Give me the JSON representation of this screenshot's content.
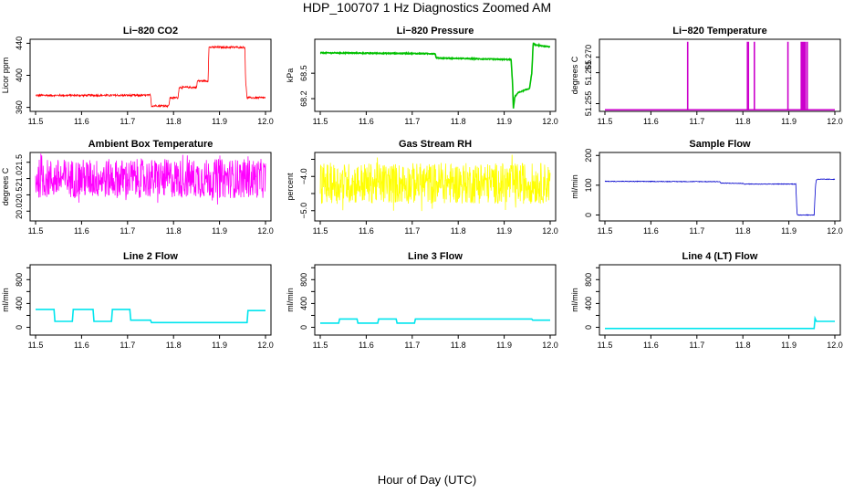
{
  "figure": {
    "title": "HDP_100707  1 Hz Diagnostics Zoomed AM",
    "xlabel": "Hour of Day (UTC)"
  },
  "chart_data": [
    {
      "type": "line",
      "title": "Li−820 CO2",
      "ylabel": "Licor ppm",
      "color": "#ff0000",
      "xlim": [
        11.5,
        12.0
      ],
      "ylim": [
        355,
        445
      ],
      "xticks": [
        11.5,
        11.6,
        11.7,
        11.8,
        11.9,
        12.0
      ],
      "yticks": [
        360,
        400,
        440
      ],
      "xtick_labels": [
        "11.5",
        "11.6",
        "11.7",
        "11.8",
        "11.9",
        "12.0"
      ],
      "ytick_labels": [
        "360",
        "400",
        "440"
      ],
      "noise": 1.2,
      "x": [
        11.5,
        11.75,
        11.752,
        11.79,
        11.792,
        11.81,
        11.812,
        11.85,
        11.852,
        11.875,
        11.877,
        11.955,
        11.957,
        11.96,
        11.962,
        12.0
      ],
      "y": [
        375,
        375,
        362,
        362,
        372,
        372,
        385,
        385,
        393,
        393,
        435,
        435,
        390,
        372,
        372,
        372
      ]
    },
    {
      "type": "line",
      "title": "Li−820 Pressure",
      "ylabel": "kPa",
      "color": "#00c000",
      "xlim": [
        11.5,
        12.0
      ],
      "ylim": [
        68.05,
        68.9
      ],
      "xticks": [
        11.5,
        11.6,
        11.7,
        11.8,
        11.9,
        12.0
      ],
      "yticks": [
        68.2,
        68.5
      ],
      "xtick_labels": [
        "11.5",
        "11.6",
        "11.7",
        "11.8",
        "11.9",
        "12.0"
      ],
      "ytick_labels": [
        "68.2",
        "68.5"
      ],
      "noise": 0.005,
      "x": [
        11.5,
        11.75,
        11.752,
        11.915,
        11.918,
        11.92,
        11.923,
        11.93,
        11.955,
        11.96,
        11.963,
        11.97,
        12.0
      ],
      "y": [
        68.74,
        68.73,
        68.68,
        68.66,
        68.4,
        68.08,
        68.22,
        68.27,
        68.32,
        68.5,
        68.85,
        68.83,
        68.81
      ]
    },
    {
      "type": "line",
      "title": "Li−820 Temperature",
      "ylabel": "degrees C",
      "color": "#cc00cc",
      "xlim": [
        11.5,
        12.0
      ],
      "ylim": [
        51.2525,
        51.2758
      ],
      "xticks": [
        11.5,
        11.6,
        11.7,
        11.8,
        11.9,
        12.0
      ],
      "yticks": [
        51.255,
        51.265,
        51.27
      ],
      "xtick_labels": [
        "11.5",
        "11.6",
        "11.7",
        "11.8",
        "11.9",
        "12.0"
      ],
      "ytick_labels": [
        "51.255",
        "51.265",
        "51.270"
      ],
      "baseline": 51.253,
      "spike_top": 51.275,
      "spike_x": [
        11.68,
        11.81,
        11.812,
        11.825,
        11.898,
        11.927,
        11.929,
        11.931,
        11.933,
        11.936,
        11.94
      ]
    },
    {
      "type": "line",
      "title": "Ambient Box Temperature",
      "ylabel": "degrees C",
      "color": "#ff00ff",
      "xlim": [
        11.5,
        12.0
      ],
      "ylim": [
        19.7,
        21.8
      ],
      "xticks": [
        11.5,
        11.6,
        11.7,
        11.8,
        11.9,
        12.0
      ],
      "yticks": [
        20.0,
        20.5,
        21.0,
        21.5
      ],
      "xtick_labels": [
        "11.5",
        "11.6",
        "11.7",
        "11.8",
        "11.9",
        "12.0"
      ],
      "ytick_labels": [
        "20.0",
        "20.5",
        "21.0",
        "21.5"
      ],
      "noise": 0.6,
      "x": [
        11.5,
        12.0
      ],
      "y": [
        21.0,
        21.0
      ]
    },
    {
      "type": "line",
      "title": "Gas Stream RH",
      "ylabel": "percent",
      "color": "#ffff00",
      "xlim": [
        11.5,
        12.0
      ],
      "ylim": [
        -5.3,
        -3.3
      ],
      "xticks": [
        11.5,
        11.6,
        11.7,
        11.8,
        11.9,
        12.0
      ],
      "yticks": [
        -5.0,
        -4.5,
        -4.0,
        -3.5
      ],
      "xtick_labels": [
        "11.5",
        "11.6",
        "11.7",
        "11.8",
        "11.9",
        "12.0"
      ],
      "ytick_labels": [
        "−5.0",
        "",
        "−4.0",
        ""
      ],
      "noise": 0.6,
      "x": [
        11.5,
        12.0
      ],
      "y": [
        -4.2,
        -4.2
      ]
    },
    {
      "type": "line",
      "title": "Sample Flow",
      "ylabel": "ml/min",
      "color": "#0000cc",
      "xlim": [
        11.5,
        12.0
      ],
      "ylim": [
        -20,
        210
      ],
      "xticks": [
        11.5,
        11.6,
        11.7,
        11.8,
        11.9,
        12.0
      ],
      "yticks": [
        0,
        100,
        200
      ],
      "xtick_labels": [
        "11.5",
        "11.6",
        "11.7",
        "11.8",
        "11.9",
        "12.0"
      ],
      "ytick_labels": [
        "0",
        "100",
        "200"
      ],
      "noise": 1.0,
      "x": [
        11.5,
        11.75,
        11.752,
        11.8,
        11.802,
        11.915,
        11.918,
        11.955,
        11.958,
        11.96,
        11.962,
        12.0
      ],
      "y": [
        113,
        112,
        107,
        106,
        104,
        104,
        0,
        0,
        100,
        118,
        120,
        120
      ]
    },
    {
      "type": "line",
      "title": "Line 2 Flow",
      "ylabel": "ml/min",
      "color": "#00e5ee",
      "xlim": [
        11.5,
        12.0
      ],
      "ylim": [
        -130,
        1050
      ],
      "xticks": [
        11.5,
        11.6,
        11.7,
        11.8,
        11.9,
        12.0
      ],
      "yticks": [
        0,
        200,
        400,
        600,
        800,
        1000
      ],
      "xtick_labels": [
        "11.5",
        "11.6",
        "11.7",
        "11.8",
        "11.9",
        "12.0"
      ],
      "ytick_labels": [
        "0",
        "",
        "400",
        "",
        "800",
        ""
      ],
      "noise": 0,
      "x": [
        11.5,
        11.54,
        11.542,
        11.58,
        11.582,
        11.625,
        11.627,
        11.665,
        11.667,
        11.705,
        11.707,
        11.75,
        11.752,
        11.96,
        11.962,
        12.0
      ],
      "y": [
        300,
        300,
        100,
        100,
        300,
        300,
        100,
        100,
        300,
        300,
        120,
        120,
        80,
        80,
        280,
        280
      ]
    },
    {
      "type": "line",
      "title": "Line 3 Flow",
      "ylabel": "ml/min",
      "color": "#00e5ee",
      "xlim": [
        11.5,
        12.0
      ],
      "ylim": [
        -130,
        1050
      ],
      "xticks": [
        11.5,
        11.6,
        11.7,
        11.8,
        11.9,
        12.0
      ],
      "yticks": [
        0,
        200,
        400,
        600,
        800,
        1000
      ],
      "xtick_labels": [
        "11.5",
        "11.6",
        "11.7",
        "11.8",
        "11.9",
        "12.0"
      ],
      "ytick_labels": [
        "0",
        "",
        "400",
        "",
        "800",
        ""
      ],
      "noise": 0,
      "x": [
        11.5,
        11.54,
        11.542,
        11.58,
        11.582,
        11.625,
        11.627,
        11.665,
        11.667,
        11.705,
        11.707,
        11.96,
        11.962,
        12.0
      ],
      "y": [
        70,
        70,
        140,
        140,
        70,
        70,
        140,
        140,
        70,
        70,
        140,
        140,
        120,
        120
      ]
    },
    {
      "type": "line",
      "title": "Line 4 (LT) Flow",
      "ylabel": "ml/min",
      "color": "#00e5ee",
      "xlim": [
        11.5,
        12.0
      ],
      "ylim": [
        -130,
        1050
      ],
      "xticks": [
        11.5,
        11.6,
        11.7,
        11.8,
        11.9,
        12.0
      ],
      "yticks": [
        0,
        200,
        400,
        600,
        800,
        1000
      ],
      "xtick_labels": [
        "11.5",
        "11.6",
        "11.7",
        "11.8",
        "11.9",
        "12.0"
      ],
      "ytick_labels": [
        "0",
        "",
        "400",
        "",
        "800",
        ""
      ],
      "noise": 0,
      "x": [
        11.5,
        11.955,
        11.957,
        11.96,
        11.962,
        12.0
      ],
      "y": [
        -20,
        -20,
        150,
        100,
        100,
        100
      ]
    }
  ]
}
